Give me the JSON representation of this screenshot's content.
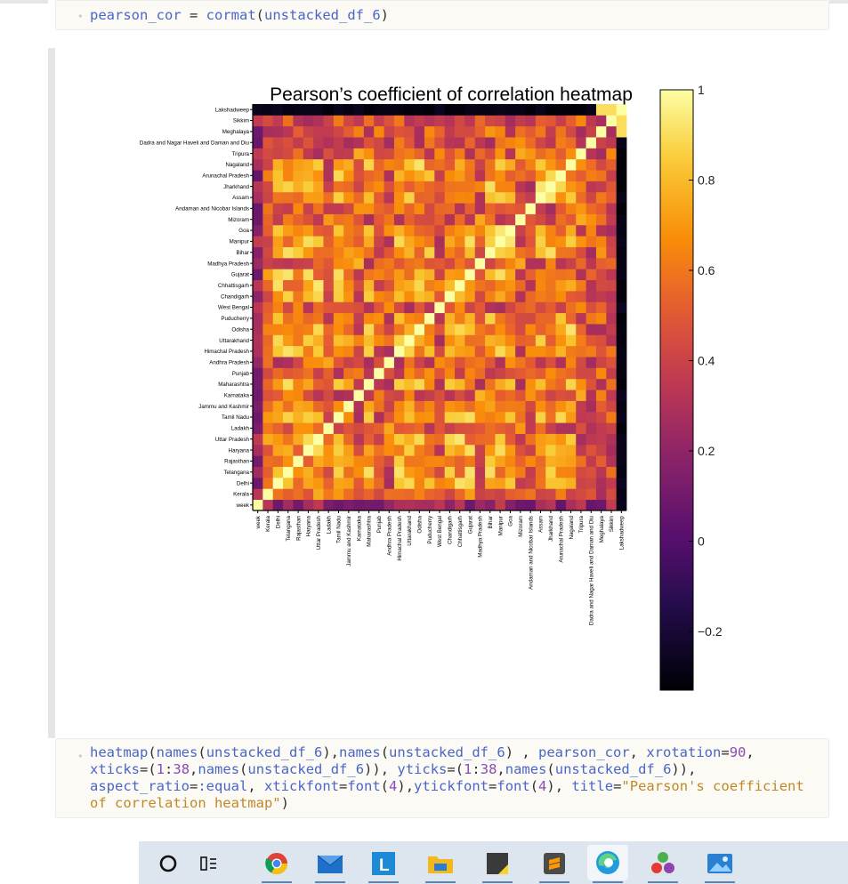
{
  "cell1": {
    "code_html": "<span class=\"fn\">pearson_cor</span> = <span class=\"fn\">cormat</span>(<span class=\"fn\">unstacked_df_6</span>)"
  },
  "cell2": {
    "code_lines_html": [
      "<span class=\"fn\">heatmap</span>(<span class=\"fn\">names</span>(<span class=\"fn\">unstacked_df_6</span>),<span class=\"fn\">names</span>(<span class=\"fn\">unstacked_df_6</span>) , <span class=\"fn\">pearson_cor</span>, <span class=\"fn\">xrotation</span>=<span class=\"num\">90</span>,",
      "<span class=\"fn\">xticks</span>=(<span class=\"num\">1</span>:<span class=\"num\">38</span>,<span class=\"fn\">names</span>(<span class=\"fn\">unstacked_df_6</span>)), <span class=\"fn\">yticks</span>=(<span class=\"num\">1</span>:<span class=\"num\">38</span>,<span class=\"fn\">names</span>(<span class=\"fn\">unstacked_df_6</span>)),",
      "<span class=\"fn\">aspect_ratio</span>=<span class=\"fn\">:equal</span>, <span class=\"fn\">xtickfont</span>=<span class=\"fn\">font</span>(<span class=\"num\">4</span>),<span class=\"fn\">ytickfont</span>=<span class=\"fn\">font</span>(<span class=\"num\">4</span>), <span class=\"fn\">title</span>=<span class=\"str\">\"Pearson's coefficient</span>",
      "<span class=\"str\">of correlation heatmap\"</span>)"
    ]
  },
  "chart_data": {
    "type": "heatmap",
    "title": "Pearson’s coefficient of correlation heatmap",
    "colormap": "inferno",
    "clim": [
      -0.33,
      1.0
    ],
    "colorbar_ticks": [
      1,
      0.8,
      0.6,
      0.4,
      0.2,
      0,
      -0.2
    ],
    "colorbar_tick_labels": [
      "1",
      "0.8",
      "0.6",
      "0.4",
      "0.2",
      "0",
      "−0.2"
    ],
    "labels": [
      "week",
      "Kerala",
      "Delhi",
      "Telangana",
      "Rajasthan",
      "Haryana",
      "Uttar Pradesh",
      "Ladakh",
      "Tamil Nadu",
      "Jammu and Kashmir",
      "Karnataka",
      "Maharashtra",
      "Punjab",
      "Andhra Pradesh",
      "Himachal Pradesh",
      "Uttarakhand",
      "Odisha",
      "Puducherry",
      "West Bengal",
      "Chandigarh",
      "Chhattisgarh",
      "Gujarat",
      "Madhya Pradesh",
      "Bihar",
      "Manipur",
      "Goa",
      "Mizoram",
      "Andaman and Nicobar Islands",
      "Assam",
      "Jharkhand",
      "Arunachal Pradesh",
      "Nagaland",
      "Tripura",
      "Dadra and Nagar Haveli and Daman and Diu",
      "Meghalaya",
      "Sikkim",
      "Lakshadweep"
    ],
    "group": [
      0,
      1,
      2,
      2,
      2,
      2,
      2,
      3,
      2,
      2,
      3,
      2,
      3,
      3,
      2,
      2,
      2,
      2,
      3,
      2,
      2,
      2,
      3,
      2,
      2,
      2,
      3,
      4,
      2,
      2,
      2,
      2,
      3,
      4,
      4,
      4,
      5
    ],
    "last_column_profile": [
      0.0,
      0.2
    ]
  },
  "taskbar": {
    "icons": [
      "search-circle-icon",
      "task-view-icon",
      "chrome-icon",
      "mail-icon",
      "l-app-icon",
      "file-explorer-icon",
      "sticky-notes-icon",
      "sublime-text-icon",
      "edge-icon",
      "office-apps-icon",
      "photos-icon"
    ]
  }
}
